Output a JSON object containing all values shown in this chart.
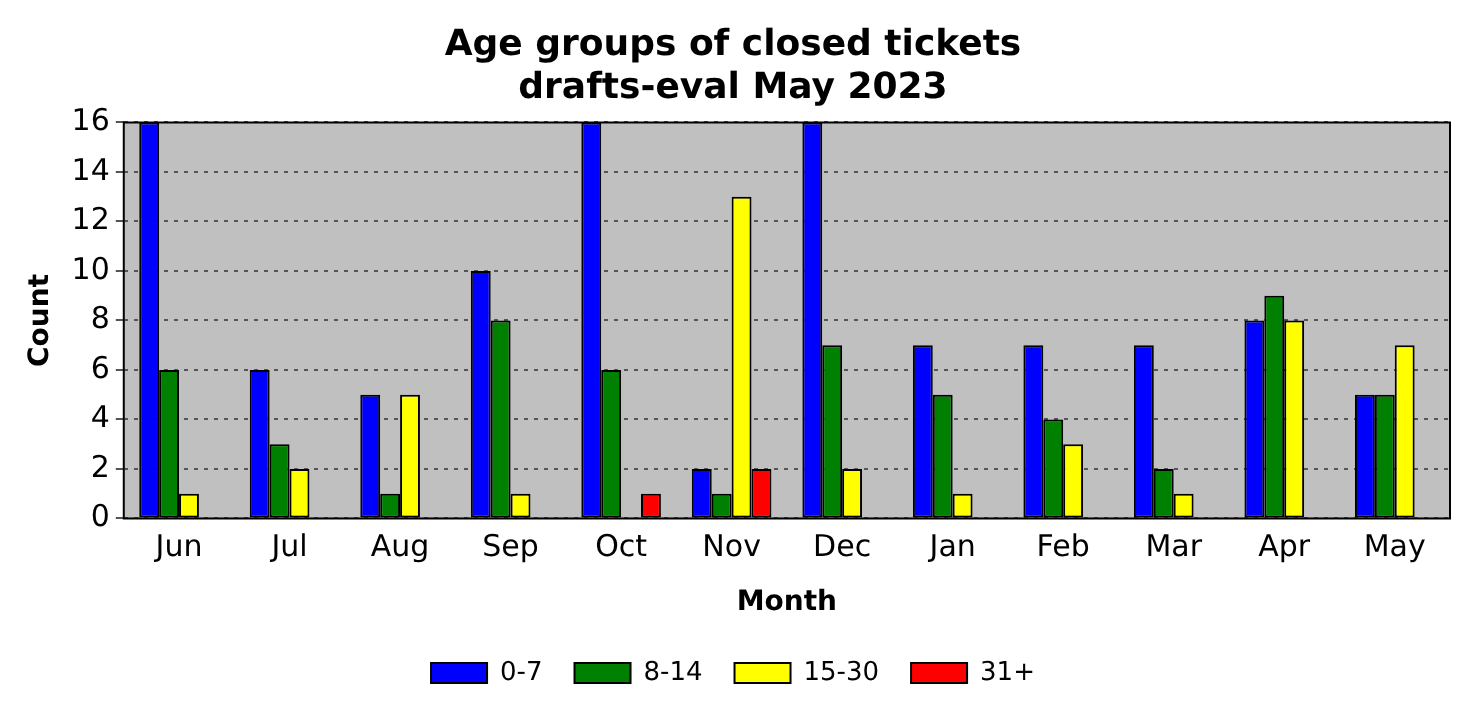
{
  "chart_data": {
    "type": "bar",
    "title": "Age groups of closed tickets",
    "subtitle": "drafts-eval May 2023",
    "xlabel": "Month",
    "ylabel": "Count",
    "categories": [
      "Jun",
      "Jul",
      "Aug",
      "Sep",
      "Oct",
      "Nov",
      "Dec",
      "Jan",
      "Feb",
      "Mar",
      "Apr",
      "May"
    ],
    "series": [
      {
        "name": "0-7",
        "color": "#0000ff",
        "values": [
          16,
          6,
          5,
          10,
          16,
          2,
          16,
          7,
          7,
          7,
          8,
          5
        ]
      },
      {
        "name": "8-14",
        "color": "#008000",
        "values": [
          6,
          3,
          1,
          8,
          6,
          1,
          7,
          5,
          4,
          2,
          9,
          5
        ]
      },
      {
        "name": "15-30",
        "color": "#ffff00",
        "values": [
          1,
          2,
          5,
          1,
          0,
          13,
          2,
          1,
          3,
          1,
          8,
          7
        ]
      },
      {
        "name": "31+",
        "color": "#ff0000",
        "values": [
          0,
          0,
          0,
          0,
          1,
          2,
          0,
          0,
          0,
          0,
          0,
          0
        ]
      }
    ],
    "ylim": [
      0,
      16
    ],
    "yticks": [
      0,
      2,
      4,
      6,
      8,
      10,
      12,
      14,
      16
    ],
    "grid": "y",
    "legend": "bottom"
  }
}
